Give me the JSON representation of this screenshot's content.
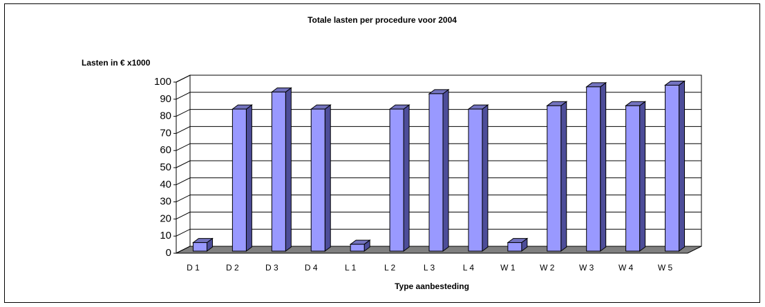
{
  "chart_data": {
    "type": "bar3d",
    "title": "Totale lasten per procedure voor 2004",
    "y_label": "Lasten in € x1000",
    "x_label": "Type aanbesteding",
    "categories": [
      "D 1",
      "D 2",
      "D 3",
      "D 4",
      "L 1",
      "L 2",
      "L 3",
      "L 4",
      "W 1",
      "W 2",
      "W 3",
      "W 4",
      "W 5"
    ],
    "values": [
      5,
      83,
      93,
      83,
      4,
      83,
      92,
      83,
      5,
      85,
      96,
      85,
      97
    ],
    "color": "#9999ff",
    "ylim": [
      0,
      100
    ],
    "yticks": [
      0,
      10,
      20,
      30,
      40,
      50,
      60,
      70,
      80,
      90,
      100
    ],
    "grid": true
  }
}
